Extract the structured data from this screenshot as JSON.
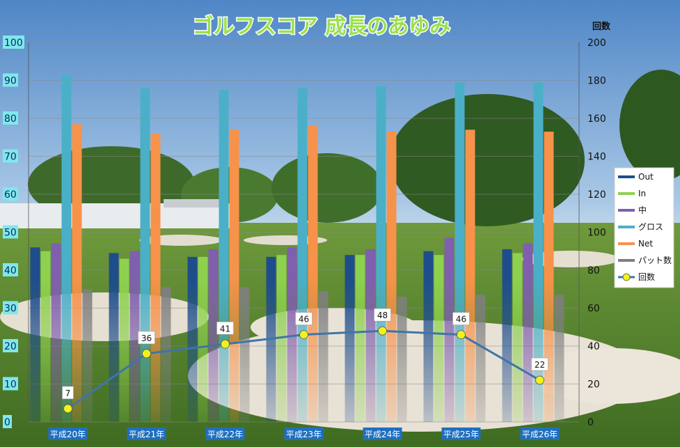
{
  "colors": {
    "Out": "#1e4d8c",
    "In": "#8ed14f",
    "中": "#7f5fae",
    "グロス": "#4bafc8",
    "Net": "#f7924a",
    "パット数": "#7f7f7f",
    "回数_line": "#3f74a8",
    "回数_marker": "#f2f21a"
  },
  "chart_data": {
    "type": "bar",
    "title": "ゴルフスコア 成長のあゆみ",
    "categories": [
      "平成20年",
      "平成21年",
      "平成22年",
      "平成23年",
      "平成24年",
      "平成25年",
      "平成26年"
    ],
    "series": [
      {
        "name": "Out",
        "axis": "left",
        "values": [
          46,
          44.5,
          43.5,
          43.5,
          44,
          45,
          45.5
        ]
      },
      {
        "name": "In",
        "axis": "left",
        "values": [
          45,
          43,
          43.5,
          44,
          44,
          44,
          44.5
        ]
      },
      {
        "name": "中",
        "axis": "left",
        "values": [
          47,
          45,
          45.5,
          46,
          45.5,
          48.5,
          47
        ]
      },
      {
        "name": "グロス",
        "axis": "left",
        "values": [
          91.5,
          88,
          87.5,
          88,
          88.5,
          89.5,
          89.5
        ]
      },
      {
        "name": "Net",
        "axis": "left",
        "values": [
          78.5,
          76,
          77,
          78,
          76.5,
          77,
          76.5
        ]
      },
      {
        "name": "パット数",
        "axis": "left",
        "values": [
          35,
          35.5,
          35.5,
          34.5,
          33,
          33.5,
          33.5
        ]
      },
      {
        "name": "回数",
        "axis": "right",
        "type": "line",
        "values": [
          7,
          36,
          41,
          46,
          48,
          46,
          22
        ]
      }
    ],
    "left_axis": {
      "min": 0,
      "max": 100,
      "ticks": [
        "0",
        "10",
        "20",
        "30",
        "40",
        "50",
        "60",
        "70",
        "80",
        "90",
        "100"
      ]
    },
    "right_axis": {
      "title": "回数",
      "min": 0,
      "max": 200,
      "ticks": [
        "0",
        "20",
        "40",
        "60",
        "80",
        "100",
        "120",
        "140",
        "160",
        "180",
        "200"
      ]
    },
    "legend": {
      "placement": "right",
      "entries": [
        "Out",
        "In",
        "中",
        "グロス",
        "Net",
        "パット数",
        "回数"
      ]
    },
    "grid": true,
    "data_labels": [
      "7",
      "36",
      "41",
      "46",
      "48",
      "46",
      "22"
    ]
  }
}
